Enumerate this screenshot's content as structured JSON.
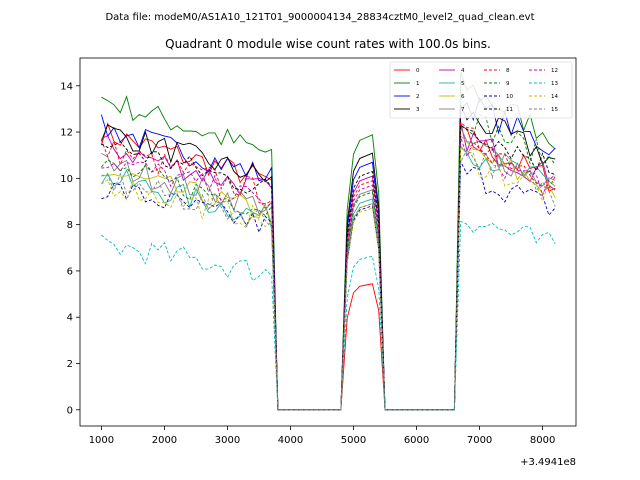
{
  "suptitle": "Data file: modeM0/AS1A10_121T01_9000004134_28834cztM0_level2_quad_clean.evt",
  "chart_data": {
    "type": "line",
    "title": "Quadrant 0 module wise count rates with 100.0s bins.",
    "xlabel": "",
    "ylabel": "",
    "x_offset_label": "+3.4941e8",
    "xlim": [
      660,
      8530
    ],
    "ylim": [
      -0.7,
      15.2
    ],
    "x_ticks": [
      1000,
      2000,
      3000,
      4000,
      5000,
      6000,
      7000,
      8000
    ],
    "y_ticks": [
      0,
      2,
      4,
      6,
      8,
      10,
      12,
      14
    ],
    "grid": false,
    "legend_position": "top-right",
    "gti": [
      [
        1000,
        3700
      ],
      [
        4900,
        5400
      ],
      [
        6700,
        8200
      ]
    ],
    "bin": 100,
    "series": [
      {
        "name": "0",
        "color": "#ff0000",
        "dash": "solid",
        "levels": [
          10.7,
          5.5,
          10.7
        ]
      },
      {
        "name": "1",
        "color": "#008000",
        "dash": "solid",
        "levels": [
          12.0,
          12.0,
          12.8
        ]
      },
      {
        "name": "2",
        "color": "#0000ff",
        "dash": "solid",
        "levels": [
          10.9,
          10.8,
          12.2
        ]
      },
      {
        "name": "3",
        "color": "#000000",
        "dash": "solid",
        "levels": [
          10.8,
          11.2,
          11.7
        ]
      },
      {
        "name": "4",
        "color": "#bf00bf",
        "dash": "solid",
        "levels": [
          10.2,
          10.2,
          10.8
        ]
      },
      {
        "name": "5",
        "color": "#20b2aa",
        "dash": "solid",
        "levels": [
          9.0,
          9.2,
          10.4
        ]
      },
      {
        "name": "6",
        "color": "#bfbf00",
        "dash": "solid",
        "levels": [
          9.2,
          9.0,
          10.3
        ]
      },
      {
        "name": "7",
        "color": "#808080",
        "dash": "solid",
        "levels": [
          9.5,
          9.6,
          10.6
        ]
      },
      {
        "name": "8",
        "color": "#ff0000",
        "dash": "dashed",
        "levels": [
          10.1,
          10.0,
          10.8
        ]
      },
      {
        "name": "9",
        "color": "#008000",
        "dash": "dashed",
        "levels": [
          9.4,
          9.5,
          11.6
        ]
      },
      {
        "name": "10",
        "color": "#0000bf",
        "dash": "dashed",
        "levels": [
          8.6,
          8.9,
          9.4
        ]
      },
      {
        "name": "11",
        "color": "#000000",
        "dash": "dashed",
        "levels": [
          10.3,
          10.4,
          11.3
        ]
      },
      {
        "name": "12",
        "color": "#bf00bf",
        "dash": "dashed",
        "levels": [
          9.7,
          9.8,
          10.4
        ]
      },
      {
        "name": "13",
        "color": "#00bfbf",
        "dash": "dashed",
        "levels": [
          6.4,
          6.7,
          7.6
        ]
      },
      {
        "name": "14",
        "color": "#bfbf00",
        "dash": "dashed",
        "levels": [
          8.8,
          8.8,
          10.0
        ]
      },
      {
        "name": "15",
        "color": "#808080",
        "dash": "dashed",
        "levels": [
          8.9,
          9.0,
          10.2
        ]
      }
    ]
  }
}
